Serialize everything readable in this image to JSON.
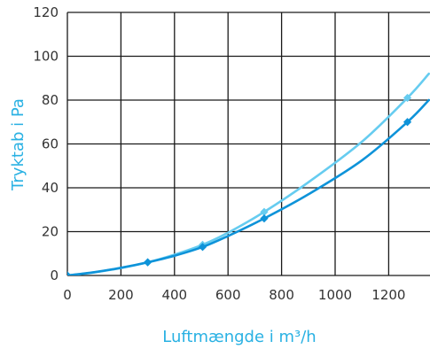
{
  "chart_data": {
    "type": "line",
    "xlabel": "Luftmængde i m³/h",
    "ylabel": "Tryktab i Pa",
    "xlim": [
      0,
      1350
    ],
    "ylim": [
      0,
      120
    ],
    "x_ticks": [
      0,
      200,
      400,
      600,
      800,
      1000,
      1200
    ],
    "x_tick_labels": [
      "0",
      "200",
      "400",
      "600",
      "800",
      "1000",
      "1200"
    ],
    "y_ticks": [
      0,
      20,
      40,
      60,
      80,
      100,
      120
    ],
    "y_tick_labels": [
      "0",
      "20",
      "40",
      "60",
      "80",
      "100",
      "120"
    ],
    "grid": true,
    "colors": {
      "label": "#29b1e3",
      "grid": "#1a1a1a"
    },
    "series": [
      {
        "color": "#66ccf0",
        "marker": "diamond",
        "points": [
          [
            0,
            0
          ],
          [
            300,
            6
          ],
          [
            505,
            14
          ],
          [
            735,
            29
          ],
          [
            1270,
            81
          ]
        ],
        "curve": [
          [
            0,
            0
          ],
          [
            100,
            1.4
          ],
          [
            200,
            3.4
          ],
          [
            300,
            6
          ],
          [
            400,
            9.5
          ],
          [
            505,
            14
          ],
          [
            600,
            19.5
          ],
          [
            735,
            29
          ],
          [
            900,
            42.5
          ],
          [
            1100,
            61
          ],
          [
            1270,
            81
          ],
          [
            1350,
            92
          ]
        ]
      },
      {
        "color": "#0e93d9",
        "marker": "diamond",
        "points": [
          [
            0,
            0
          ],
          [
            300,
            6
          ],
          [
            505,
            13
          ],
          [
            735,
            26
          ],
          [
            1270,
            70
          ]
        ],
        "curve": [
          [
            0,
            0
          ],
          [
            100,
            1.5
          ],
          [
            200,
            3.5
          ],
          [
            300,
            6
          ],
          [
            400,
            9
          ],
          [
            505,
            13
          ],
          [
            600,
            18
          ],
          [
            735,
            26
          ],
          [
            900,
            37
          ],
          [
            1100,
            52.5
          ],
          [
            1270,
            70
          ],
          [
            1350,
            80
          ]
        ]
      }
    ]
  }
}
